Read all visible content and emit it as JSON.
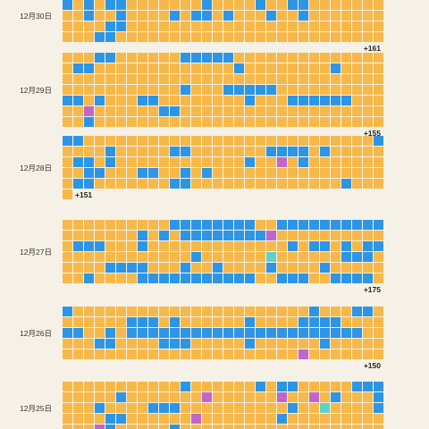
{
  "colors": {
    "background": "#f6f1e6",
    "O": "#f7b84a",
    "B": "#2d95e6",
    "P": "#c166c9",
    "T": "#5fd1c9"
  },
  "chart_data": {
    "type": "heatmap",
    "cols": 30,
    "days": [
      {
        "label": "12月30日",
        "extra": "+161",
        "rows": [
          "BOOOOOOOOOOOOOOOOOOOOOOOOOOOOO",
          "BOBOBBOOOOOOOBOOOOBOOBBOOOOOOO",
          "OOBOOBOOOOBOBBOBOOOBOOBOOOOOOO",
          "OOOOBBOOOOOOOOOOOOOOOOOOOOOOOO",
          "OOOBBOOOOOOOOOOOOOOOOOOOOOOOOO"
        ]
      },
      {
        "label": "12月29日",
        "extra": "+155",
        "rows": [
          "OOOBBOOOOOOBBBBBOOOOOOOOOOOOOO",
          "OBBOOOOOOOOOOOOOBOOOOOOOOBOOOO",
          "OOOOOOOOOOOOOOOOOOOOOOOOOOOOOO",
          "OOOOOOOOOOOBOOOBBBBBOOOOOOOOOO",
          "BBOBOOOBBOOOOOOOOBOOOBBBBBBOOO",
          "OOPOOOOOOBBOOOOOOOOOOOOOOOOOOO",
          "OOBOOOOOOOOOOOOOOOOOOOOOOOOOOO"
        ]
      },
      {
        "label": "12月28日",
        "extra": "+151",
        "rows": [
          "BBOOOOOOOOOOOOOOOOOOOOOOOOOOOB",
          "OOOOBOOOOOBBOOOOOOOBBBBOBOOOOO",
          "OBBOBOOOOOOOOOOOOBOOPOBOOOOOOO",
          "OOBBOOOBBOOBOBOOOOOOOOOOOOOOOO",
          "OBBOOOOOOOBBOOOOOOOOOOOOOOBOOO",
          "O"
        ]
      },
      {
        "label": "12月27日",
        "extra": "+175",
        "rows": [
          "OOOOOOOOOOBBBBBBBBOOBBBBBBBBBB",
          "OOOOOOOBOBOBBBBBBBBPOOOOOOOOOO",
          "OBBBOOOBOOOOOOOOOOOOOBOBBOBOBB",
          "OOOOOOOOOOOOBOOOOOOTOOOOOOBBBO",
          "OOOOBBBBOOOBOOBOOOOBOOOOBOOOOO",
          "OOBOOOOBBBBBBBBBBBOOBBBOOBBBBO"
        ]
      },
      {
        "label": "12月26日",
        "extra": "+150",
        "rows": [
          "BOOOOOOOOOOOOOOOOOOOOOOBOOOBBO",
          "OOOOOOBBBOBOOOOOOBOOOOBBBBOOOO",
          "BBOOBOBBBBBBBBBBBBBBBBBBBBBBOO",
          "OOOBBOOOOBBBOOOOOBOOOOOOBOOOOO",
          "OOOOOOOOOOOOOOOOOOOOOOPOOOOOOO"
        ]
      },
      {
        "label": "12月25日",
        "extra": "",
        "rows": [
          "OOOOOOOOOOOBOOOOOOBOBBOOOOOBBB",
          "OOOOOBOOOOOOOPOOOOOOPOOPOBOOOB",
          "OOOBOOOOBBBOOOOOOOOOOBOOTOOOOB",
          "OOOOBBOOOOOOPOOOOOOOBOOOOOOOOO",
          "OOOPBOOOOOBOOOOOOOOOOOOOOOOOOO"
        ]
      }
    ]
  }
}
